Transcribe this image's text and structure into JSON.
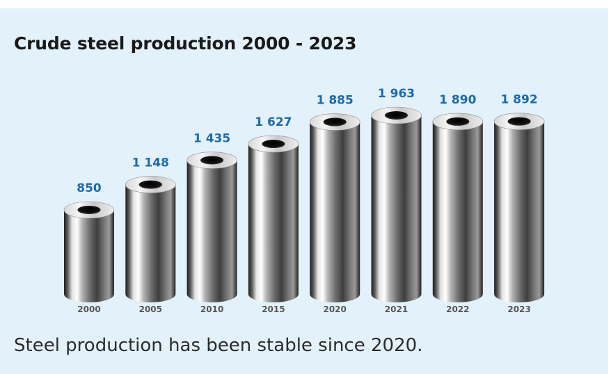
{
  "title": "Crude steel production 2000 - 2023",
  "footnote": "Steel production has been stable since 2020.",
  "colors": {
    "background": "#e3f1fa",
    "value_label": "#1e6aa8",
    "category_label": "#555555"
  },
  "chart_data": {
    "type": "bar",
    "title": "Crude steel production 2000 - 2023",
    "xlabel": "",
    "ylabel": "",
    "categories": [
      "2000",
      "2005",
      "2010",
      "2015",
      "2020",
      "2021",
      "2022",
      "2023"
    ],
    "values": [
      850,
      1148,
      1435,
      1627,
      1885,
      1963,
      1890,
      1892
    ],
    "value_labels": [
      "850",
      "1 148",
      "1 435",
      "1 627",
      "1 885",
      "1 963",
      "1 890",
      "1 892"
    ],
    "ylim": [
      0,
      1963
    ],
    "grid": false,
    "legend": "none"
  }
}
